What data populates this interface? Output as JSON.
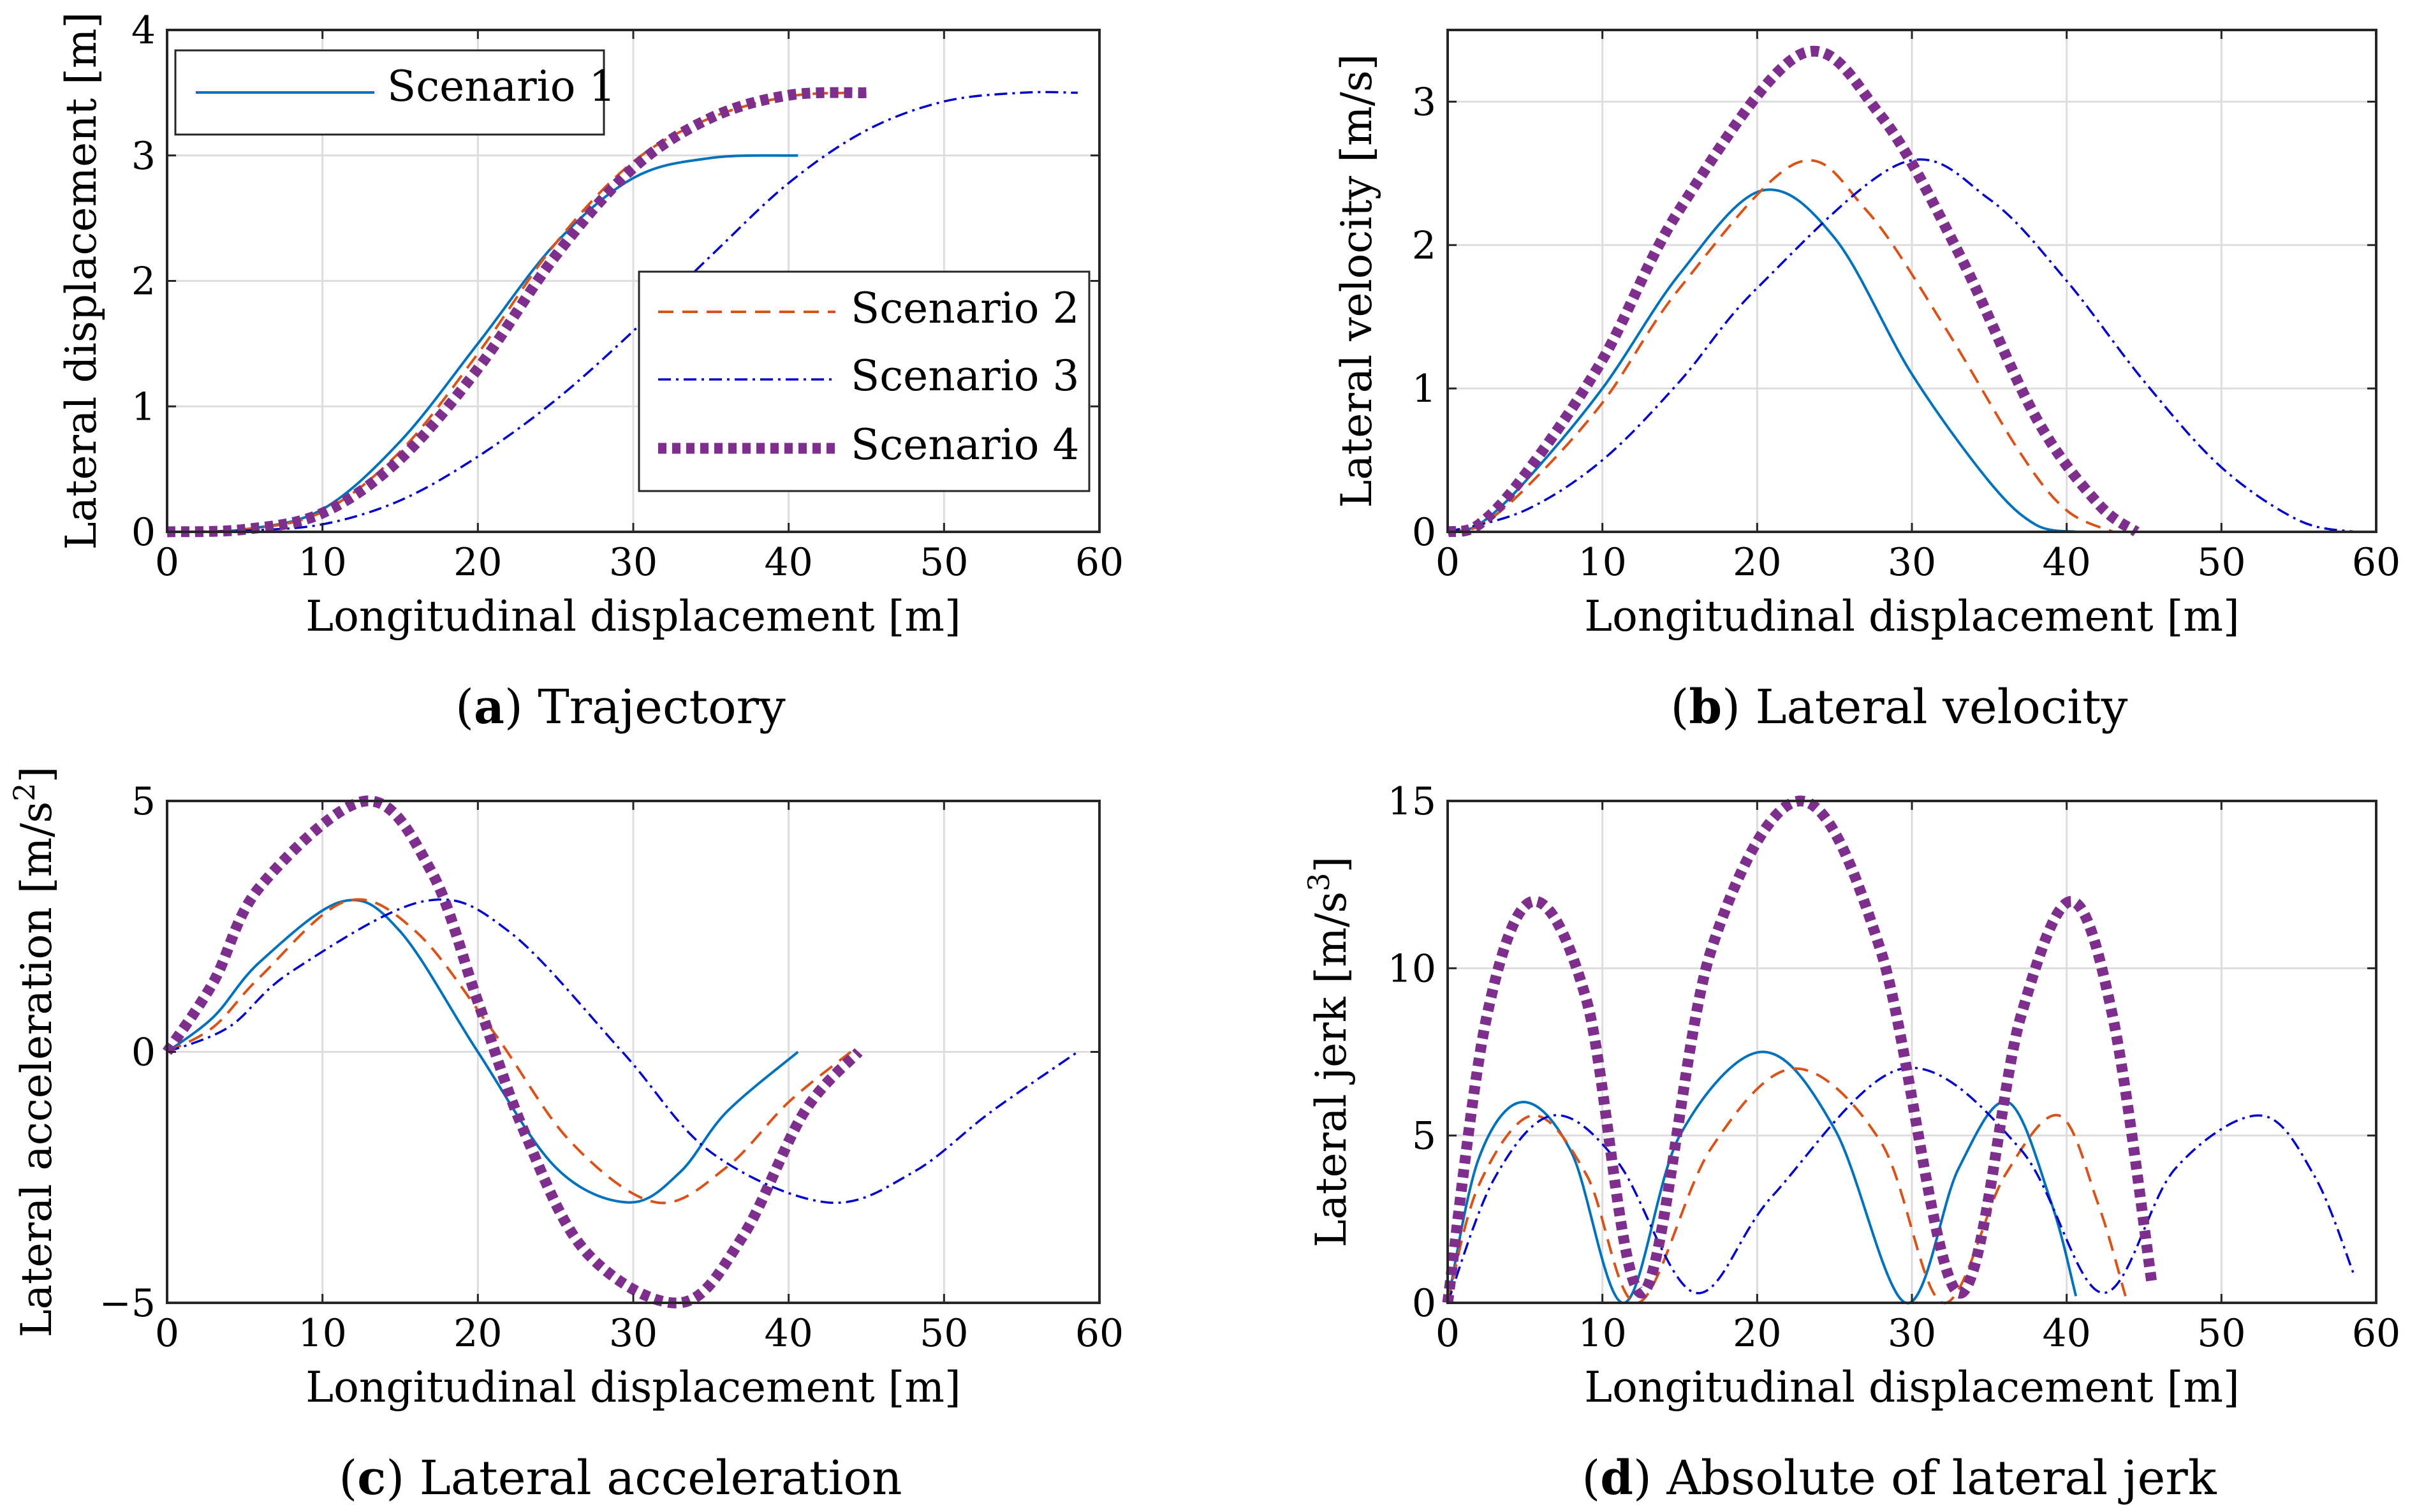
{
  "colors": {
    "s1": "#0072BD",
    "s2": "#D95319",
    "s3": "#0000CC",
    "s4": "#7E2F8E",
    "grid": "#dddddd",
    "axis": "#262626"
  },
  "legend": {
    "box1": [
      "Scenario 1"
    ],
    "box2": [
      "Scenario 2",
      "Scenario 3",
      "Scenario 4"
    ]
  },
  "captions": [
    {
      "letter": "a",
      "text": " Trajectory"
    },
    {
      "letter": "b",
      "text": " Lateral velocity"
    },
    {
      "letter": "c",
      "text": " Lateral acceleration"
    },
    {
      "letter": "d",
      "text": " Absolute of lateral jerk"
    }
  ],
  "chart_data": [
    {
      "type": "line",
      "title": "Trajectory",
      "xlabel": "Longitudinal displacement [m]",
      "ylabel": "Lateral displacement [m]",
      "xlim": [
        0,
        60
      ],
      "ylim": [
        0,
        4
      ],
      "xticks": [
        0,
        10,
        20,
        30,
        40,
        50,
        60
      ],
      "yticks": [
        0,
        1,
        2,
        3,
        4
      ],
      "xtick_labels": [
        "0",
        "10",
        "20",
        "30",
        "40",
        "50",
        "60"
      ],
      "ytick_labels": [
        "0",
        "1",
        "2",
        "3",
        "4"
      ],
      "grid": true,
      "series": [
        {
          "name": "Scenario 1",
          "x": [
            0,
            5,
            10,
            15,
            20,
            25,
            30,
            35,
            40.6
          ],
          "y": [
            0,
            0.02,
            0.18,
            0.72,
            1.5,
            2.3,
            2.82,
            2.98,
            3.0
          ]
        },
        {
          "name": "Scenario 2",
          "x": [
            0,
            5,
            10,
            15,
            20,
            25,
            30,
            35,
            40,
            44
          ],
          "y": [
            0,
            0.02,
            0.16,
            0.64,
            1.42,
            2.3,
            2.95,
            3.3,
            3.47,
            3.5
          ]
        },
        {
          "name": "Scenario 3",
          "x": [
            0,
            5,
            10,
            15,
            20,
            25,
            30,
            35,
            40,
            45,
            50,
            55,
            58.6
          ],
          "y": [
            0,
            0.01,
            0.06,
            0.25,
            0.6,
            1.05,
            1.6,
            2.2,
            2.78,
            3.2,
            3.43,
            3.5,
            3.5
          ]
        },
        {
          "name": "Scenario 4",
          "x": [
            0,
            5,
            10,
            15,
            20,
            25,
            30,
            35,
            40,
            45
          ],
          "y": [
            0,
            0.02,
            0.15,
            0.58,
            1.3,
            2.2,
            2.9,
            3.3,
            3.48,
            3.5
          ]
        }
      ]
    },
    {
      "type": "line",
      "title": "Lateral velocity",
      "xlabel": "Longitudinal displacement [m]",
      "ylabel": "Lateral velocity [m/s]",
      "xlim": [
        0,
        60
      ],
      "ylim": [
        0,
        3.5
      ],
      "xticks": [
        0,
        10,
        20,
        30,
        40,
        50,
        60
      ],
      "yticks": [
        0,
        1,
        2,
        3
      ],
      "xtick_labels": [
        "0",
        "10",
        "20",
        "30",
        "40",
        "50",
        "60"
      ],
      "ytick_labels": [
        "0",
        "1",
        "2",
        "3"
      ],
      "grid": true,
      "series": [
        {
          "name": "Scenario 1",
          "x": [
            0,
            2,
            5,
            10,
            15,
            20.3,
            25,
            30,
            35,
            38,
            40.6
          ],
          "y": [
            0,
            0.05,
            0.35,
            1.0,
            1.8,
            2.38,
            2.05,
            1.1,
            0.35,
            0.05,
            0
          ]
        },
        {
          "name": "Scenario 2",
          "x": [
            0,
            2,
            5,
            10,
            15,
            22.5,
            27,
            32,
            37,
            40,
            43
          ],
          "y": [
            0,
            0.04,
            0.3,
            0.9,
            1.7,
            2.57,
            2.25,
            1.45,
            0.55,
            0.15,
            0
          ]
        },
        {
          "name": "Scenario 3",
          "x": [
            0,
            5,
            10,
            15,
            20,
            29.3,
            35,
            40,
            45,
            50,
            55,
            58.6
          ],
          "y": [
            0,
            0.15,
            0.5,
            1.05,
            1.7,
            2.57,
            2.32,
            1.75,
            1.05,
            0.45,
            0.08,
            0
          ]
        },
        {
          "name": "Scenario 4",
          "x": [
            0,
            2,
            5,
            10,
            15,
            22.8,
            28,
            33,
            38,
            42,
            44.5
          ],
          "y": [
            0,
            0.05,
            0.4,
            1.2,
            2.25,
            3.33,
            2.9,
            1.95,
            0.8,
            0.2,
            0
          ]
        }
      ]
    },
    {
      "type": "line",
      "title": "Lateral acceleration",
      "xlabel": "Longitudinal displacement [m]",
      "ylabel": "Lateral acceleration  [m/s",
      "ylabel_sup": "2",
      "ylabel_end": "]",
      "xlim": [
        0,
        60
      ],
      "ylim": [
        -5,
        5
      ],
      "xticks": [
        0,
        10,
        20,
        30,
        40,
        50,
        60
      ],
      "yticks": [
        -5,
        0,
        5
      ],
      "xtick_labels": [
        "0",
        "10",
        "20",
        "30",
        "40",
        "50",
        "60"
      ],
      "ytick_labels": [
        "−5",
        "0",
        "5"
      ],
      "grid": true,
      "series": [
        {
          "name": "Scenario 1",
          "x": [
            0,
            3,
            6,
            11.3,
            15,
            20,
            25,
            29.7,
            33,
            36,
            40.6
          ],
          "y": [
            0,
            0.7,
            1.8,
            3.0,
            2.4,
            0,
            -2.3,
            -3.0,
            -2.4,
            -1.2,
            0
          ]
        },
        {
          "name": "Scenario 2",
          "x": [
            0,
            3,
            6,
            11.5,
            16,
            21,
            26,
            31.5,
            36,
            40,
            44
          ],
          "y": [
            0,
            0.5,
            1.5,
            3.0,
            2.4,
            0.4,
            -1.8,
            -3.0,
            -2.3,
            -1.0,
            0
          ]
        },
        {
          "name": "Scenario 3",
          "x": [
            0,
            4,
            8,
            16.5,
            22,
            29.3,
            35,
            42.5,
            48,
            53,
            58.6
          ],
          "y": [
            0,
            0.5,
            1.6,
            3.0,
            2.4,
            0,
            -2.0,
            -3.0,
            -2.4,
            -1.2,
            0
          ]
        },
        {
          "name": "Scenario 4",
          "x": [
            0,
            3,
            6,
            12.8,
            17,
            20,
            23,
            27,
            33,
            37,
            41,
            44.5
          ],
          "y": [
            0,
            1.4,
            3.3,
            5.0,
            3.6,
            1.0,
            -1.6,
            -4.0,
            -5.0,
            -3.7,
            -1.2,
            0
          ]
        }
      ]
    },
    {
      "type": "line",
      "title": "Absolute of lateral jerk",
      "xlabel": "Longitudinal displacement [m]",
      "ylabel": "Lateral jerk [m/s",
      "ylabel_sup": "3",
      "ylabel_end": "]",
      "xlim": [
        0,
        60
      ],
      "ylim": [
        0,
        15
      ],
      "xticks": [
        0,
        10,
        20,
        30,
        40,
        50,
        60
      ],
      "yticks": [
        0,
        5,
        10,
        15
      ],
      "xtick_labels": [
        "0",
        "10",
        "20",
        "30",
        "40",
        "50",
        "60"
      ],
      "ytick_labels": [
        "0",
        "5",
        "10",
        "15"
      ],
      "grid": true,
      "series": [
        {
          "name": "Scenario 1",
          "x": [
            0,
            2,
            4.8,
            8,
            11.4,
            15,
            20.3,
            25,
            29.6,
            33,
            36.2,
            39,
            40.6
          ],
          "y": [
            0,
            4.3,
            6.0,
            4.5,
            0,
            5.0,
            7.5,
            5.2,
            0,
            4.0,
            6.0,
            3.0,
            0.2
          ]
        },
        {
          "name": "Scenario 2",
          "x": [
            0,
            2,
            5.5,
            9,
            12.3,
            17,
            22.4,
            28,
            32,
            36,
            39.5,
            42,
            43.8
          ],
          "y": [
            0,
            3.5,
            5.6,
            3.8,
            0,
            4.6,
            7.0,
            4.8,
            0,
            3.8,
            5.6,
            3.0,
            0.2
          ]
        },
        {
          "name": "Scenario 3",
          "x": [
            0,
            3,
            6.8,
            11,
            16,
            21,
            29.4,
            37,
            42.3,
            47,
            52.5,
            56,
            58.6
          ],
          "y": [
            0,
            3.7,
            5.6,
            4.2,
            0.3,
            3.2,
            7.0,
            4.6,
            0.3,
            4.0,
            5.6,
            3.8,
            0.8
          ]
        },
        {
          "name": "Scenario 4",
          "x": [
            0,
            2.5,
            5.5,
            9,
            12.6,
            17,
            22.8,
            28,
            33,
            37,
            40.3,
            43,
            45.5
          ],
          "y": [
            0,
            8.5,
            12.0,
            9.0,
            0.3,
            10.5,
            15.0,
            10.5,
            0.3,
            8.5,
            12.0,
            8.5,
            0.6
          ]
        }
      ]
    }
  ]
}
